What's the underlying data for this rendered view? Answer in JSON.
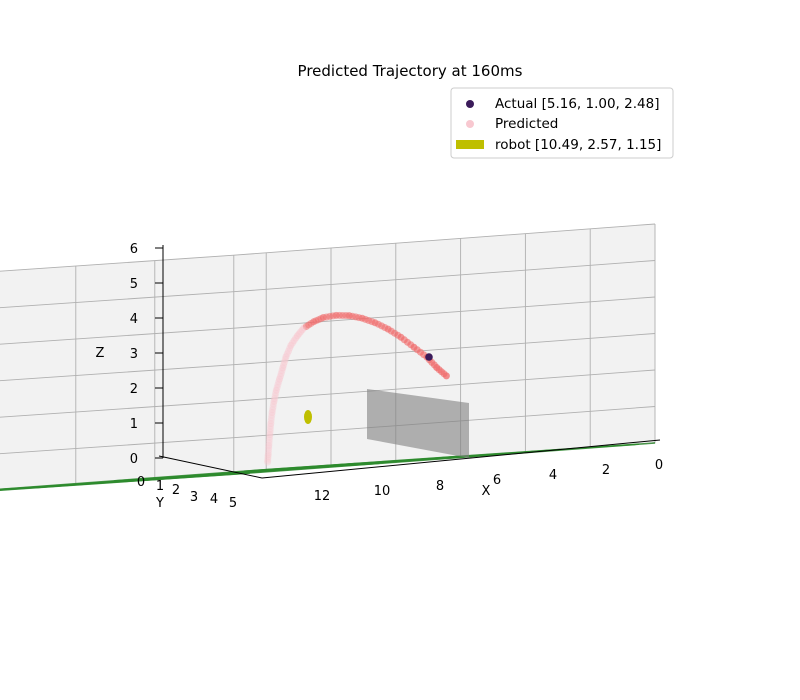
{
  "chart_data": {
    "type": "scatter",
    "projection": "3d",
    "title": "Predicted Trajectory at 160ms",
    "xlabel": "X",
    "ylabel": "Y",
    "zlabel": "Z",
    "x_ticks": [
      "0",
      "2",
      "4",
      "6",
      "8",
      "10",
      "12"
    ],
    "y_ticks": [
      "0",
      "1",
      "2",
      "3",
      "4",
      "5"
    ],
    "z_ticks": [
      "0",
      "1",
      "2",
      "3",
      "4",
      "5",
      "6"
    ],
    "grid": true,
    "legend_position": "upper-right",
    "series": [
      {
        "name": "Actual [5.16, 1.00, 2.48]",
        "marker": "dot",
        "color": "#3b1b5a",
        "points": [
          [
            5.16,
            1.0,
            2.48
          ]
        ]
      },
      {
        "name": "Predicted",
        "marker": "dot",
        "color": "#f08080",
        "note_colors": [
          "#f06a6a",
          "#f8c8d0"
        ],
        "points": [
          [
            4.0,
            1.0,
            2.25
          ],
          [
            4.3,
            1.0,
            2.5
          ],
          [
            4.6,
            1.0,
            2.8
          ],
          [
            5.0,
            1.0,
            3.1
          ],
          [
            5.4,
            1.0,
            3.4
          ],
          [
            5.8,
            1.0,
            3.65
          ],
          [
            6.2,
            1.0,
            3.85
          ],
          [
            6.6,
            1.0,
            4.0
          ],
          [
            7.0,
            1.0,
            4.1
          ],
          [
            7.4,
            1.0,
            4.13
          ],
          [
            7.8,
            1.0,
            4.1
          ],
          [
            8.1,
            1.0,
            4.0
          ],
          [
            8.4,
            1.0,
            3.85
          ],
          [
            8.6,
            1.0,
            3.65
          ],
          [
            8.8,
            1.0,
            3.4
          ],
          [
            8.95,
            1.0,
            3.1
          ],
          [
            9.05,
            1.0,
            2.8
          ],
          [
            9.15,
            1.0,
            2.5
          ],
          [
            9.25,
            1.0,
            2.2
          ],
          [
            9.32,
            1.0,
            1.9
          ],
          [
            9.38,
            1.0,
            1.6
          ],
          [
            9.42,
            1.0,
            1.3
          ],
          [
            9.45,
            1.0,
            1.0
          ],
          [
            9.48,
            1.0,
            0.7
          ],
          [
            9.5,
            1.0,
            0.45
          ],
          [
            9.52,
            1.0,
            0.25
          ]
        ]
      },
      {
        "name": "robot [10.49, 2.57, 1.15]",
        "marker": "patch",
        "color": "#bfbf00",
        "points": [
          [
            10.49,
            2.57,
            1.15
          ]
        ]
      }
    ],
    "court_line_color": "#2e8b2e",
    "net_color": "#808080"
  }
}
